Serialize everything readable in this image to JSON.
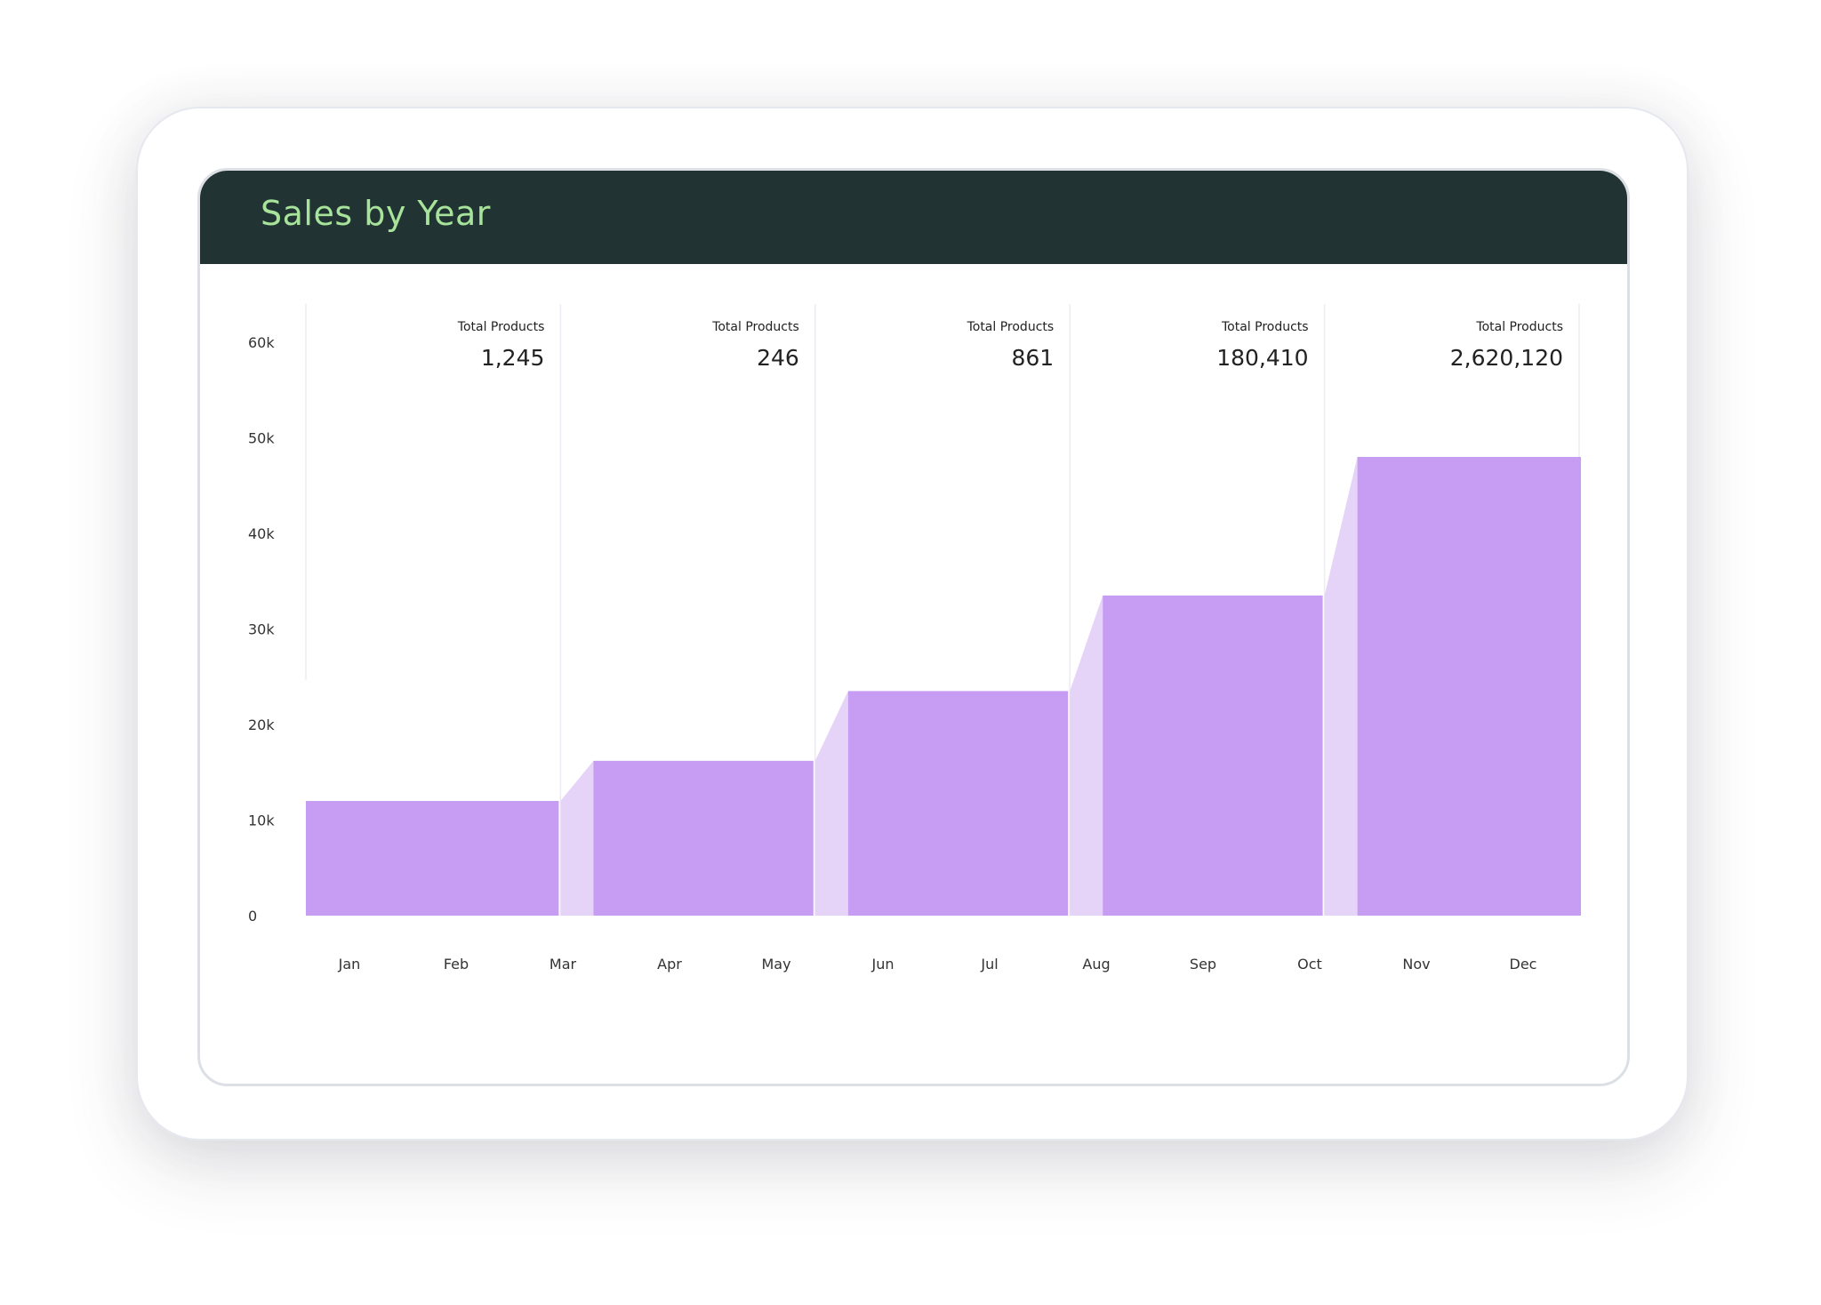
{
  "header": {
    "title": "Sales by Year"
  },
  "colors": {
    "header_bg": "#213332",
    "title": "#a7e39a",
    "bar": "#c79cf3",
    "connector": "#e6d4f8",
    "divider": "#ececf2"
  },
  "chart_data": {
    "type": "bar",
    "title": "Sales by Year",
    "xlabel": "",
    "ylabel": "",
    "ylim": [
      0,
      60000
    ],
    "yticks": [
      "0",
      "10k",
      "20k",
      "30k",
      "40k",
      "50k",
      "60k"
    ],
    "months": [
      "Jan",
      "Feb",
      "Mar",
      "Apr",
      "May",
      "Jun",
      "Jul",
      "Aug",
      "Sep",
      "Oct",
      "Nov",
      "Dec"
    ],
    "grid": false,
    "series": [
      {
        "values": [
          12000,
          16200,
          23500,
          33500,
          48000
        ]
      }
    ],
    "segments": [
      {
        "stat_label": "Total Products",
        "stat_value": "1,245"
      },
      {
        "stat_label": "Total Products",
        "stat_value": "246"
      },
      {
        "stat_label": "Total Products",
        "stat_value": "861"
      },
      {
        "stat_label": "Total Products",
        "stat_value": "180,410"
      },
      {
        "stat_label": "Total Products",
        "stat_value": "2,620,120"
      }
    ]
  }
}
